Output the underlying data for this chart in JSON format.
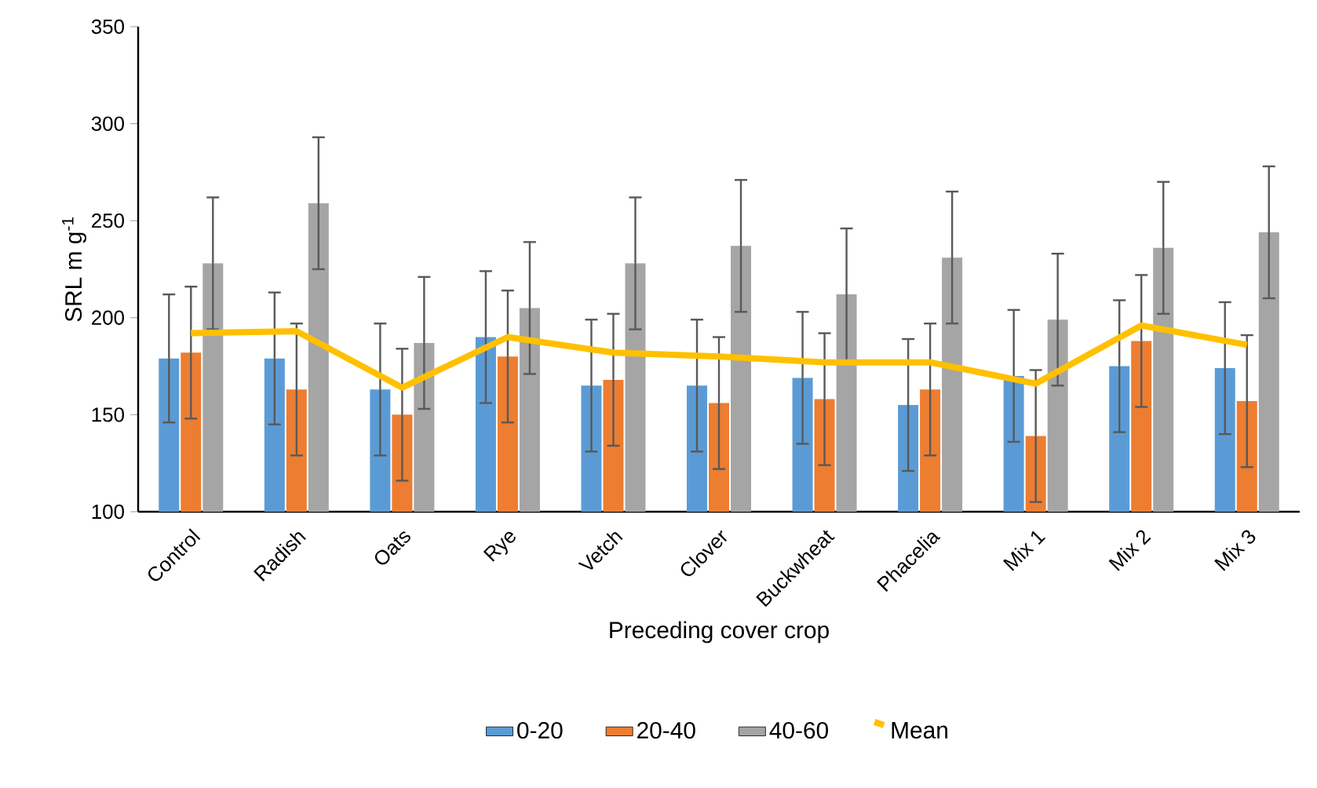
{
  "chart_data": {
    "type": "bar",
    "xlabel": "Preceding cover crop",
    "ylabel": "SRL m g$^{-1}$",
    "categories": [
      "Control",
      "Radish",
      "Oats",
      "Rye",
      "Vetch",
      "Clover",
      "Buckwheat",
      "Phacelia",
      "Mix 1",
      "Mix 2",
      "Mix 3"
    ],
    "series": [
      {
        "name": "0-20",
        "color": "#5b9bd5",
        "values": [
          179,
          179,
          163,
          190,
          165,
          165,
          169,
          155,
          170,
          175,
          174
        ],
        "errors": [
          33,
          34,
          34,
          34,
          34,
          34,
          34,
          34,
          34,
          34,
          34
        ]
      },
      {
        "name": "20-40",
        "color": "#ed7d31",
        "values": [
          182,
          163,
          150,
          180,
          168,
          156,
          158,
          163,
          139,
          188,
          157
        ],
        "errors": [
          34,
          34,
          34,
          34,
          34,
          34,
          34,
          34,
          34,
          34,
          34
        ]
      },
      {
        "name": "40-60",
        "color": "#a5a5a5",
        "values": [
          228,
          259,
          187,
          205,
          228,
          237,
          212,
          231,
          199,
          236,
          244
        ],
        "errors": [
          34,
          34,
          34,
          34,
          34,
          34,
          34,
          34,
          34,
          34,
          34
        ]
      },
      {
        "name": "Mean",
        "color": "#ffc000",
        "type": "line",
        "values": [
          192,
          193,
          164,
          190,
          182,
          180,
          177,
          177,
          166,
          196,
          186
        ]
      }
    ],
    "ylim": [
      100,
      350
    ],
    "yticks": [
      100,
      150,
      200,
      250,
      300,
      350
    ],
    "grid": false,
    "legend": "bottom"
  }
}
